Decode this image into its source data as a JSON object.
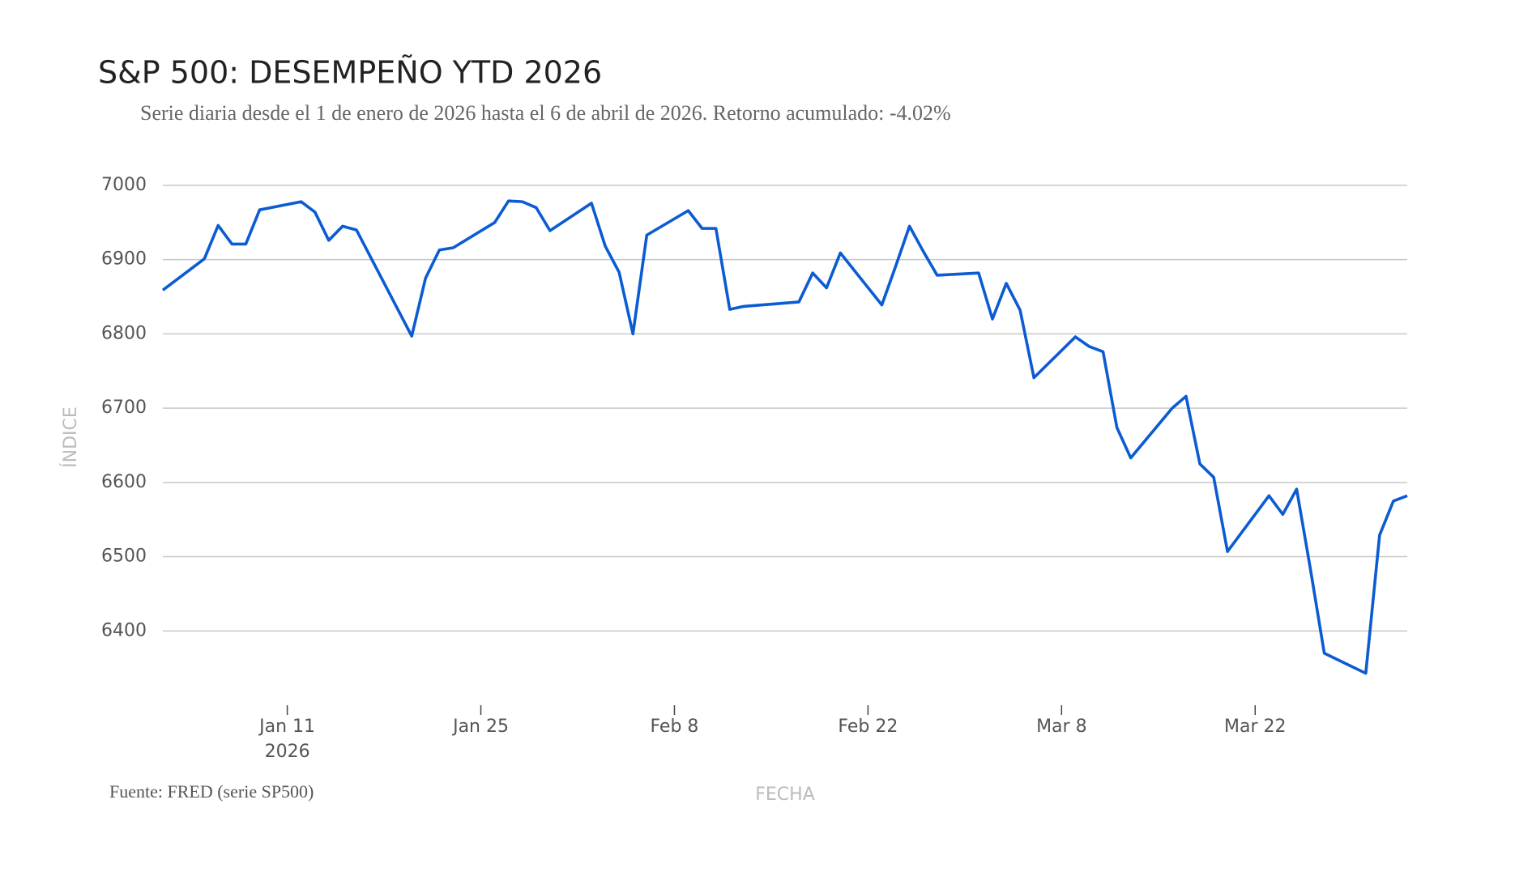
{
  "chart_data": {
    "type": "line",
    "title": "S&P 500: DESEMPEÑO YTD 2026",
    "subtitle": "Serie diaria desde el 1 de enero de 2026 hasta el 6 de abril de 2026. Retorno acumulado: -4.02%",
    "source": "Fuente: FRED (serie SP500)",
    "x_label": "FECHA",
    "y_label": "ÍNDICE",
    "x_year_label": "2026",
    "x": [
      "2026-01-02",
      "2026-01-05",
      "2026-01-06",
      "2026-01-07",
      "2026-01-08",
      "2026-01-09",
      "2026-01-12",
      "2026-01-13",
      "2026-01-14",
      "2026-01-15",
      "2026-01-16",
      "2026-01-20",
      "2026-01-21",
      "2026-01-22",
      "2026-01-23",
      "2026-01-26",
      "2026-01-27",
      "2026-01-28",
      "2026-01-29",
      "2026-01-30",
      "2026-02-02",
      "2026-02-03",
      "2026-02-04",
      "2026-02-05",
      "2026-02-06",
      "2026-02-09",
      "2026-02-10",
      "2026-02-11",
      "2026-02-12",
      "2026-02-13",
      "2026-02-17",
      "2026-02-18",
      "2026-02-19",
      "2026-02-20",
      "2026-02-23",
      "2026-02-24",
      "2026-02-25",
      "2026-02-26",
      "2026-02-27",
      "2026-03-02",
      "2026-03-03",
      "2026-03-04",
      "2026-03-05",
      "2026-03-06",
      "2026-03-09",
      "2026-03-10",
      "2026-03-11",
      "2026-03-12",
      "2026-03-13",
      "2026-03-16",
      "2026-03-17",
      "2026-03-18",
      "2026-03-19",
      "2026-03-20",
      "2026-03-23",
      "2026-03-24",
      "2026-03-25",
      "2026-03-26",
      "2026-03-27",
      "2026-03-30",
      "2026-03-31",
      "2026-04-01",
      "2026-04-02"
    ],
    "series": [
      {
        "name": "SP500",
        "color": "#0b5bd3",
        "values": [
          6859,
          6901,
          6946,
          6921,
          6921,
          6967,
          6978,
          6964,
          6926,
          6945,
          6940,
          6797,
          6875,
          6913,
          6916,
          6950,
          6979,
          6978,
          6970,
          6939,
          6976,
          6918,
          6883,
          6800,
          6933,
          6966,
          6942,
          6942,
          6833,
          6837,
          6843,
          6882,
          6862,
          6909,
          6839,
          6891,
          6945,
          6911,
          6879,
          6882,
          6820,
          6868,
          6832,
          6741,
          6796,
          6783,
          6776,
          6674,
          6633,
          6700,
          6716,
          6625,
          6607,
          6507,
          6582,
          6557,
          6591,
          6483,
          6370,
          6343,
          6529,
          6575,
          6582
        ]
      }
    ],
    "xlim": [
      "2026-01-02",
      "2026-04-02"
    ],
    "xticks": [
      {
        "value": "2026-01-11",
        "label": "Jan 11"
      },
      {
        "value": "2026-01-25",
        "label": "Jan 25"
      },
      {
        "value": "2026-02-08",
        "label": "Feb 8"
      },
      {
        "value": "2026-02-22",
        "label": "Feb 22"
      },
      {
        "value": "2026-03-08",
        "label": "Mar 8"
      },
      {
        "value": "2026-03-22",
        "label": "Mar 22"
      }
    ],
    "ylim": [
      6300,
      7025
    ],
    "yticks": [
      6400,
      6500,
      6600,
      6700,
      6800,
      6900,
      7000
    ],
    "grid": true
  }
}
